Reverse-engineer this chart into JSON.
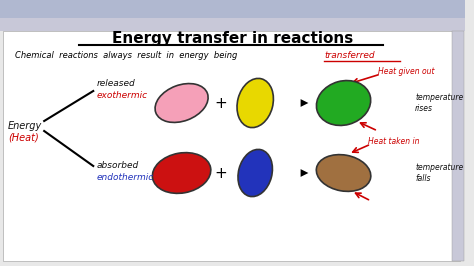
{
  "title": "Energy transfer in reactions",
  "bg_color": "#e8e8e8",
  "main_bg": "#f5f5f5",
  "white_area": "#fafafa",
  "subtitle": "Chemical  reactions  always  result  in  energy  being",
  "transferred_word": "transferred",
  "energy_label_black": "Energy",
  "energy_label_red": "(Heat)",
  "released_text": "released",
  "exothermic_text": "exothermic",
  "absorbed_text": "absorbed",
  "endothermic_text": "endothermic",
  "heat_given_out": "Heat given out",
  "heat_taken_in": "Heat taken in",
  "temp_rises": "temperature\nrises",
  "temp_falls": "temperature\nfalls",
  "exo_blob1_color": "#f5a0b8",
  "exo_blob2_color": "#e8d800",
  "exo_result_color": "#22aa22",
  "endo_blob1_color": "#cc1111",
  "endo_blob2_color": "#2233bb",
  "endo_result_color": "#a07040",
  "red_color": "#cc0000",
  "blue_color": "#2233bb",
  "black_color": "#111111",
  "browser_bar_color": "#c8c8d8",
  "browser_top_color": "#b0b8d0"
}
